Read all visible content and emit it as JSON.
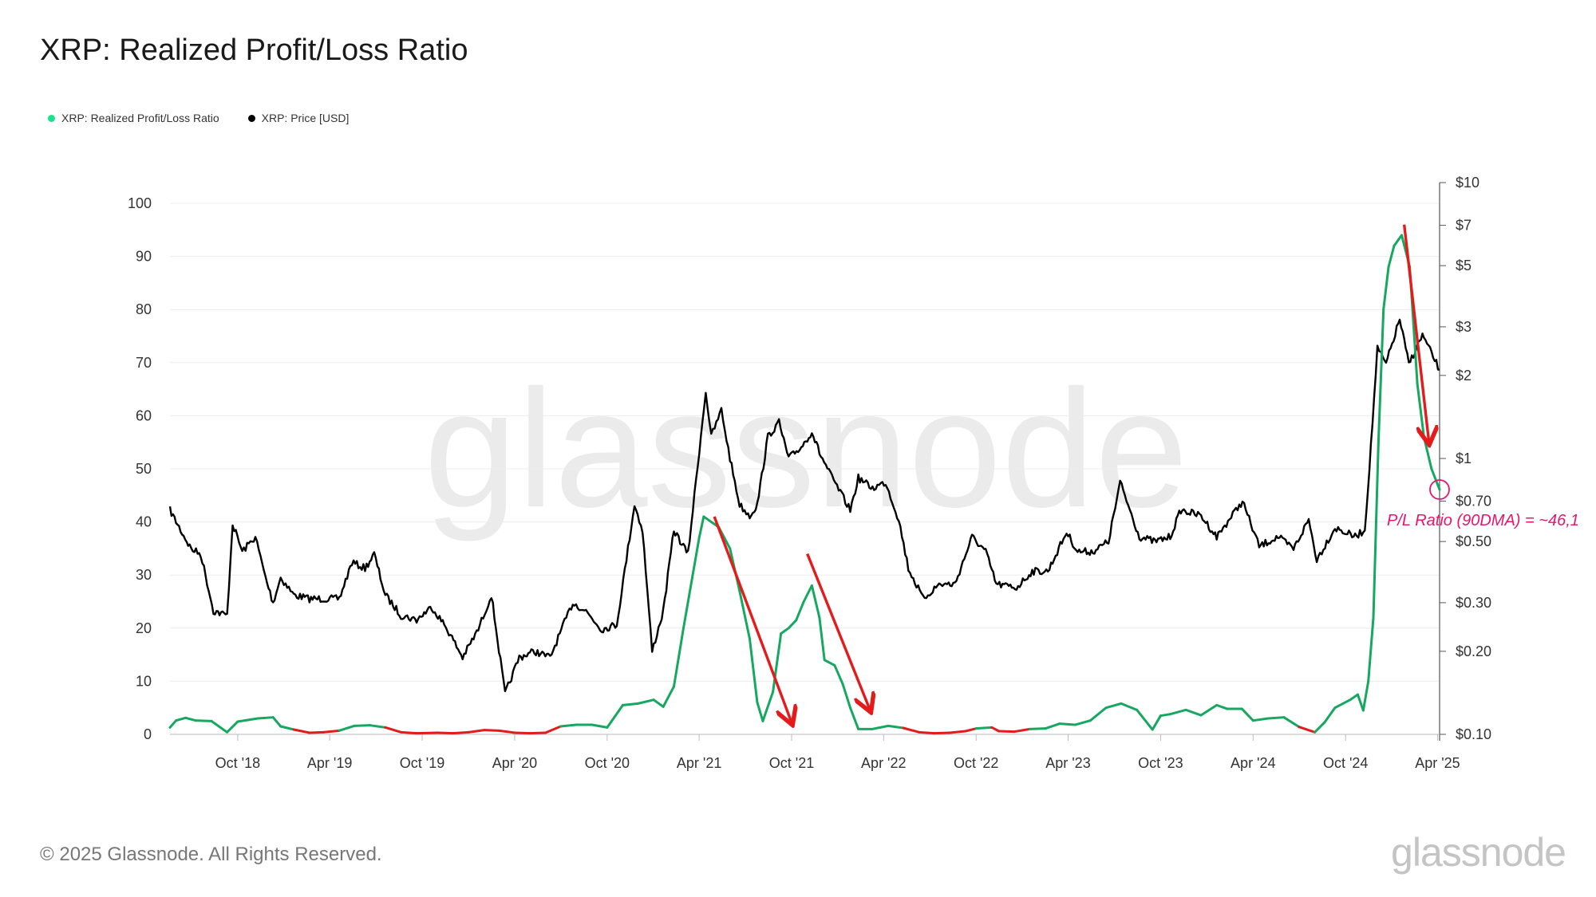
{
  "title": "XRP: Realized Profit/Loss Ratio",
  "footer": "© 2025 Glassnode. All Rights Reserved.",
  "brand": "glassnode",
  "watermark": "glassnode",
  "legend": [
    {
      "label": "XRP: Realized Profit/Loss Ratio",
      "color": "#19e38a"
    },
    {
      "label": "XRP: Price [USD]",
      "color": "#000000"
    }
  ],
  "colors": {
    "ratio_up": "#16a860",
    "ratio_down": "#e41b1b",
    "price": "#000000",
    "arrow": "#e41b1b",
    "annotation": "#e8156c",
    "grid": "#ececec"
  },
  "chart_data": {
    "type": "line",
    "x_axis": {
      "ticks": [
        "Oct '18",
        "Apr '19",
        "Oct '19",
        "Apr '20",
        "Oct '20",
        "Apr '21",
        "Oct '21",
        "Apr '22",
        "Oct '22",
        "Apr '23",
        "Oct '23",
        "Apr '24",
        "Oct '24",
        "Apr '25"
      ],
      "range": [
        "2018-05-20",
        "2025-04-05"
      ]
    },
    "y_left": {
      "range": [
        0,
        100
      ],
      "ticks": [
        "0",
        "10",
        "20",
        "30",
        "40",
        "50",
        "60",
        "70",
        "80",
        "90",
        "100"
      ]
    },
    "y_right": {
      "scale": "log",
      "range": [
        0.1,
        10
      ],
      "ticks": [
        {
          "v": 10,
          "label": "$10"
        },
        {
          "v": 7,
          "label": "$7"
        },
        {
          "v": 5,
          "label": "$5"
        },
        {
          "v": 3,
          "label": "$3"
        },
        {
          "v": 2,
          "label": "$2"
        },
        {
          "v": 1,
          "label": "$1"
        },
        {
          "v": 0.7,
          "label": "$0.70"
        },
        {
          "v": 0.5,
          "label": "$0.50"
        },
        {
          "v": 0.3,
          "label": "$0.30"
        },
        {
          "v": 0.2,
          "label": "$0.20"
        },
        {
          "v": 0.1,
          "label": "$0.10"
        }
      ]
    },
    "grid": true,
    "legend_position": "top-left",
    "series": [
      {
        "name": "XRP: Realized Profit/Loss Ratio",
        "axis": "left",
        "color_rule": "green when ratio >= 1, red when ratio < 1",
        "points": [
          [
            "2018-05-20",
            1.3
          ],
          [
            "2018-06-01",
            2.6
          ],
          [
            "2018-06-20",
            3.1
          ],
          [
            "2018-07-10",
            2.6
          ],
          [
            "2018-08-10",
            2.5
          ],
          [
            "2018-09-10",
            0.4
          ],
          [
            "2018-10-01",
            2.4
          ],
          [
            "2018-11-10",
            3.0
          ],
          [
            "2018-12-10",
            3.2
          ],
          [
            "2018-12-25",
            1.5
          ],
          [
            "2019-01-20",
            0.9
          ],
          [
            "2019-02-20",
            0.3
          ],
          [
            "2019-03-20",
            0.4
          ],
          [
            "2019-04-20",
            0.7
          ],
          [
            "2019-05-20",
            1.6
          ],
          [
            "2019-06-20",
            1.7
          ],
          [
            "2019-07-20",
            1.3
          ],
          [
            "2019-08-20",
            0.4
          ],
          [
            "2019-09-20",
            0.2
          ],
          [
            "2019-11-01",
            0.3
          ],
          [
            "2019-12-01",
            0.2
          ],
          [
            "2020-01-01",
            0.4
          ],
          [
            "2020-02-01",
            0.8
          ],
          [
            "2020-03-01",
            0.7
          ],
          [
            "2020-04-01",
            0.3
          ],
          [
            "2020-05-01",
            0.2
          ],
          [
            "2020-06-01",
            0.3
          ],
          [
            "2020-07-01",
            1.5
          ],
          [
            "2020-08-01",
            1.8
          ],
          [
            "2020-09-01",
            1.8
          ],
          [
            "2020-10-01",
            1.3
          ],
          [
            "2020-11-01",
            5.5
          ],
          [
            "2020-12-01",
            5.8
          ],
          [
            "2021-01-01",
            6.5
          ],
          [
            "2021-01-20",
            5.2
          ],
          [
            "2021-02-10",
            9.0
          ],
          [
            "2021-03-01",
            20.0
          ],
          [
            "2021-04-01",
            37.0
          ],
          [
            "2021-04-10",
            41.0
          ],
          [
            "2021-05-10",
            39.0
          ],
          [
            "2021-06-01",
            35.0
          ],
          [
            "2021-06-20",
            27.0
          ],
          [
            "2021-07-10",
            18.0
          ],
          [
            "2021-07-25",
            6.0
          ],
          [
            "2021-08-05",
            2.5
          ],
          [
            "2021-08-25",
            8.0
          ],
          [
            "2021-09-10",
            19.0
          ],
          [
            "2021-09-25",
            20.0
          ],
          [
            "2021-10-10",
            21.5
          ],
          [
            "2021-10-25",
            25.0
          ],
          [
            "2021-11-10",
            28.0
          ],
          [
            "2021-11-25",
            22.0
          ],
          [
            "2021-12-05",
            14.0
          ],
          [
            "2021-12-25",
            13.0
          ],
          [
            "2022-01-10",
            9.5
          ],
          [
            "2022-01-25",
            5.0
          ],
          [
            "2022-02-10",
            1.0
          ],
          [
            "2022-03-10",
            1.0
          ],
          [
            "2022-04-10",
            1.6
          ],
          [
            "2022-05-10",
            1.2
          ],
          [
            "2022-06-10",
            0.4
          ],
          [
            "2022-07-10",
            0.2
          ],
          [
            "2022-08-10",
            0.3
          ],
          [
            "2022-09-10",
            0.6
          ],
          [
            "2022-10-01",
            1.1
          ],
          [
            "2022-11-01",
            1.3
          ],
          [
            "2022-11-15",
            0.6
          ],
          [
            "2022-12-15",
            0.5
          ],
          [
            "2023-01-15",
            1.0
          ],
          [
            "2023-02-15",
            1.1
          ],
          [
            "2023-03-15",
            2.0
          ],
          [
            "2023-04-15",
            1.8
          ],
          [
            "2023-05-15",
            2.6
          ],
          [
            "2023-06-15",
            5.0
          ],
          [
            "2023-07-15",
            5.8
          ],
          [
            "2023-08-15",
            4.6
          ],
          [
            "2023-09-15",
            0.9
          ],
          [
            "2023-10-01",
            3.5
          ],
          [
            "2023-10-20",
            3.8
          ],
          [
            "2023-11-20",
            4.6
          ],
          [
            "2023-12-20",
            3.6
          ],
          [
            "2024-01-20",
            5.5
          ],
          [
            "2024-02-10",
            4.8
          ],
          [
            "2024-03-10",
            4.8
          ],
          [
            "2024-04-01",
            2.6
          ],
          [
            "2024-05-01",
            3.0
          ],
          [
            "2024-06-01",
            3.2
          ],
          [
            "2024-07-01",
            1.4
          ],
          [
            "2024-08-01",
            0.4
          ],
          [
            "2024-08-20",
            2.2
          ],
          [
            "2024-09-10",
            5.0
          ],
          [
            "2024-10-10",
            6.5
          ],
          [
            "2024-10-25",
            7.5
          ],
          [
            "2024-11-05",
            4.5
          ],
          [
            "2024-11-15",
            10.0
          ],
          [
            "2024-11-25",
            22.0
          ],
          [
            "2024-12-05",
            55.0
          ],
          [
            "2024-12-15",
            80.0
          ],
          [
            "2024-12-25",
            88.0
          ],
          [
            "2025-01-05",
            92.0
          ],
          [
            "2025-01-20",
            94.0
          ],
          [
            "2025-02-05",
            88.0
          ],
          [
            "2025-02-20",
            66.0
          ],
          [
            "2025-03-05",
            56.0
          ],
          [
            "2025-03-20",
            50.0
          ],
          [
            "2025-04-05",
            46.1
          ]
        ]
      },
      {
        "name": "XRP: Price [USD]",
        "axis": "right",
        "points": [
          [
            "2018-05-20",
            0.65
          ],
          [
            "2018-06-10",
            0.55
          ],
          [
            "2018-07-01",
            0.47
          ],
          [
            "2018-07-20",
            0.45
          ],
          [
            "2018-08-14",
            0.28
          ],
          [
            "2018-09-10",
            0.27
          ],
          [
            "2018-09-21",
            0.58
          ],
          [
            "2018-10-10",
            0.46
          ],
          [
            "2018-11-05",
            0.52
          ],
          [
            "2018-11-25",
            0.37
          ],
          [
            "2018-12-10",
            0.3
          ],
          [
            "2018-12-25",
            0.37
          ],
          [
            "2019-01-20",
            0.32
          ],
          [
            "2019-02-20",
            0.31
          ],
          [
            "2019-03-20",
            0.31
          ],
          [
            "2019-04-20",
            0.31
          ],
          [
            "2019-05-15",
            0.42
          ],
          [
            "2019-06-10",
            0.4
          ],
          [
            "2019-06-28",
            0.45
          ],
          [
            "2019-07-20",
            0.32
          ],
          [
            "2019-08-20",
            0.27
          ],
          [
            "2019-09-20",
            0.26
          ],
          [
            "2019-10-20",
            0.29
          ],
          [
            "2019-11-20",
            0.24
          ],
          [
            "2019-12-20",
            0.19
          ],
          [
            "2020-01-20",
            0.24
          ],
          [
            "2020-02-15",
            0.32
          ],
          [
            "2020-03-13",
            0.14
          ],
          [
            "2020-04-10",
            0.19
          ],
          [
            "2020-05-10",
            0.2
          ],
          [
            "2020-06-10",
            0.19
          ],
          [
            "2020-07-25",
            0.3
          ],
          [
            "2020-08-20",
            0.28
          ],
          [
            "2020-09-20",
            0.24
          ],
          [
            "2020-10-20",
            0.25
          ],
          [
            "2020-11-24",
            0.68
          ],
          [
            "2020-12-10",
            0.55
          ],
          [
            "2020-12-29",
            0.2
          ],
          [
            "2021-01-20",
            0.28
          ],
          [
            "2021-02-10",
            0.55
          ],
          [
            "2021-03-10",
            0.45
          ],
          [
            "2021-04-14",
            1.75
          ],
          [
            "2021-04-25",
            1.2
          ],
          [
            "2021-05-15",
            1.5
          ],
          [
            "2021-06-01",
            1.0
          ],
          [
            "2021-06-20",
            0.68
          ],
          [
            "2021-07-10",
            0.62
          ],
          [
            "2021-07-25",
            0.68
          ],
          [
            "2021-08-15",
            1.2
          ],
          [
            "2021-09-06",
            1.35
          ],
          [
            "2021-09-25",
            1.0
          ],
          [
            "2021-10-20",
            1.1
          ],
          [
            "2021-11-10",
            1.25
          ],
          [
            "2021-11-25",
            1.05
          ],
          [
            "2021-12-20",
            0.85
          ],
          [
            "2022-01-25",
            0.65
          ],
          [
            "2022-02-10",
            0.85
          ],
          [
            "2022-03-10",
            0.78
          ],
          [
            "2022-04-05",
            0.82
          ],
          [
            "2022-05-01",
            0.6
          ],
          [
            "2022-05-20",
            0.4
          ],
          [
            "2022-06-18",
            0.31
          ],
          [
            "2022-07-20",
            0.35
          ],
          [
            "2022-08-20",
            0.35
          ],
          [
            "2022-09-23",
            0.52
          ],
          [
            "2022-10-20",
            0.46
          ],
          [
            "2022-11-10",
            0.35
          ],
          [
            "2022-12-20",
            0.34
          ],
          [
            "2023-01-20",
            0.39
          ],
          [
            "2023-02-20",
            0.39
          ],
          [
            "2023-03-29",
            0.54
          ],
          [
            "2023-04-20",
            0.46
          ],
          [
            "2023-05-20",
            0.46
          ],
          [
            "2023-06-20",
            0.5
          ],
          [
            "2023-07-13",
            0.82
          ],
          [
            "2023-08-20",
            0.52
          ],
          [
            "2023-09-20",
            0.5
          ],
          [
            "2023-10-20",
            0.52
          ],
          [
            "2023-11-10",
            0.65
          ],
          [
            "2023-12-20",
            0.62
          ],
          [
            "2024-01-20",
            0.52
          ],
          [
            "2024-03-11",
            0.7
          ],
          [
            "2024-04-13",
            0.48
          ],
          [
            "2024-05-20",
            0.52
          ],
          [
            "2024-06-20",
            0.47
          ],
          [
            "2024-07-20",
            0.6
          ],
          [
            "2024-08-05",
            0.43
          ],
          [
            "2024-09-10",
            0.56
          ],
          [
            "2024-10-20",
            0.52
          ],
          [
            "2024-11-08",
            0.55
          ],
          [
            "2024-11-20",
            1.1
          ],
          [
            "2024-12-03",
            2.5
          ],
          [
            "2024-12-20",
            2.2
          ],
          [
            "2025-01-16",
            3.2
          ],
          [
            "2025-02-03",
            2.2
          ],
          [
            "2025-03-02",
            2.8
          ],
          [
            "2025-03-20",
            2.4
          ],
          [
            "2025-04-05",
            2.1
          ]
        ]
      }
    ],
    "annotations": {
      "label": "P/L Ratio (90DMA) = ~46,1"
    }
  }
}
